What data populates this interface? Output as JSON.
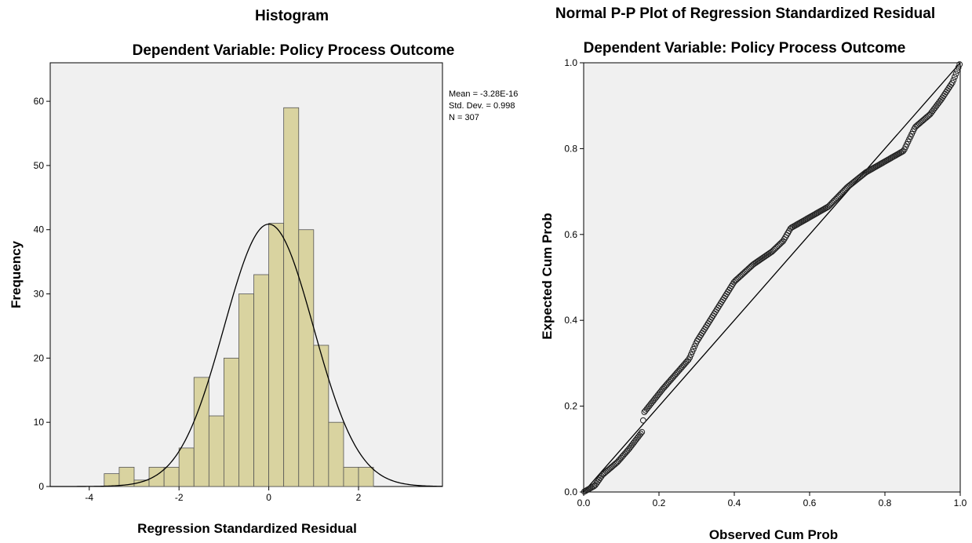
{
  "chart_data": [
    {
      "type": "bar",
      "subtype": "histogram",
      "title": "Histogram",
      "subtitle": "Dependent Variable: Policy Process Outcome",
      "xlabel": "Regression Standardized Residual",
      "ylabel": "Frequency",
      "xlim": [
        -4.87,
        3.87
      ],
      "ylim": [
        0,
        66
      ],
      "xticks": [
        -4,
        -2,
        0,
        2
      ],
      "yticks": [
        0,
        10,
        20,
        30,
        40,
        50,
        60
      ],
      "bin_width": 0.333,
      "bins": [
        {
          "x0": -3.667,
          "x1": -3.333,
          "count": 2
        },
        {
          "x0": -3.333,
          "x1": -3.0,
          "count": 3
        },
        {
          "x0": -3.0,
          "x1": -2.667,
          "count": 1
        },
        {
          "x0": -2.667,
          "x1": -2.333,
          "count": 3
        },
        {
          "x0": -2.333,
          "x1": -2.0,
          "count": 3
        },
        {
          "x0": -2.0,
          "x1": -1.667,
          "count": 6
        },
        {
          "x0": -1.667,
          "x1": -1.333,
          "count": 17
        },
        {
          "x0": -1.333,
          "x1": -1.0,
          "count": 11
        },
        {
          "x0": -1.0,
          "x1": -0.667,
          "count": 20
        },
        {
          "x0": -0.667,
          "x1": -0.333,
          "count": 30
        },
        {
          "x0": -0.333,
          "x1": 0.0,
          "count": 33
        },
        {
          "x0": 0.0,
          "x1": 0.333,
          "count": 41
        },
        {
          "x0": 0.333,
          "x1": 0.667,
          "count": 59
        },
        {
          "x0": 0.667,
          "x1": 1.0,
          "count": 40
        },
        {
          "x0": 1.0,
          "x1": 1.333,
          "count": 22
        },
        {
          "x0": 1.333,
          "x1": 1.667,
          "count": 10
        },
        {
          "x0": 1.667,
          "x1": 2.0,
          "count": 3
        },
        {
          "x0": 2.0,
          "x1": 2.333,
          "count": 3
        }
      ],
      "normal_curve": {
        "mean": 0,
        "std": 0.998,
        "n": 307
      },
      "stats": [
        "Mean = -3.28E-16",
        "Std. Dev. = 0.998",
        "N = 307"
      ],
      "bar_color": "#d9d3a0",
      "plot_background": "#f0f0f0"
    },
    {
      "type": "scatter",
      "subtype": "pp-plot",
      "title": "Normal P-P Plot of Regression Standardized Residual",
      "subtitle": "Dependent Variable: Policy Process Outcome",
      "xlabel": "Observed Cum Prob",
      "ylabel": "Expected Cum Prob",
      "xlim": [
        0,
        1
      ],
      "ylim": [
        0,
        1
      ],
      "xticks": [
        "0.0",
        "0.2",
        "0.4",
        "0.6",
        "0.8",
        "1.0"
      ],
      "yticks": [
        "0.0",
        "0.2",
        "0.4",
        "0.6",
        "0.8",
        "1.0"
      ],
      "reference_line": [
        [
          0,
          0
        ],
        [
          1,
          1
        ]
      ],
      "curve_points": [
        [
          0.0,
          0.0
        ],
        [
          0.03,
          0.015
        ],
        [
          0.05,
          0.04
        ],
        [
          0.09,
          0.07
        ],
        [
          0.12,
          0.1
        ],
        [
          0.155,
          0.14
        ],
        [
          0.16,
          0.185
        ],
        [
          0.21,
          0.24
        ],
        [
          0.28,
          0.31
        ],
        [
          0.3,
          0.35
        ],
        [
          0.35,
          0.42
        ],
        [
          0.4,
          0.49
        ],
        [
          0.45,
          0.53
        ],
        [
          0.5,
          0.56
        ],
        [
          0.53,
          0.585
        ],
        [
          0.55,
          0.615
        ],
        [
          0.6,
          0.64
        ],
        [
          0.65,
          0.665
        ],
        [
          0.7,
          0.71
        ],
        [
          0.75,
          0.745
        ],
        [
          0.8,
          0.77
        ],
        [
          0.85,
          0.795
        ],
        [
          0.88,
          0.85
        ],
        [
          0.92,
          0.88
        ],
        [
          0.95,
          0.915
        ],
        [
          0.98,
          0.955
        ],
        [
          1.0,
          1.0
        ]
      ],
      "n": 307,
      "marker": "open-circle",
      "plot_background": "#f0f0f0"
    }
  ]
}
